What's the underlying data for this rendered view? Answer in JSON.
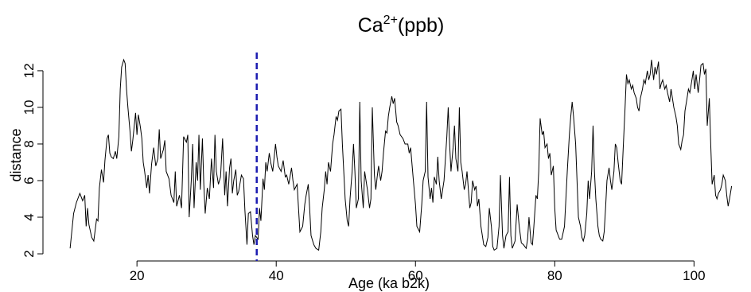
{
  "chart_data": {
    "type": "line",
    "title": [
      "Ca",
      "2+",
      "(ppb)"
    ],
    "x_label": "Age (ka b2k)",
    "y_label": "distance",
    "color": "#000000",
    "x": [
      10.4,
      10.9,
      11.3,
      11.8,
      12.2,
      12.5,
      12.7,
      12.9,
      13.1,
      13.5,
      13.8,
      14.2,
      14.4,
      14.6,
      14.9,
      15.2,
      15.4,
      15.7,
      15.9,
      16.1,
      16.3,
      16.6,
      16.9,
      17.1,
      17.4,
      17.6,
      17.8,
      18.1,
      18.3,
      18.5,
      18.7,
      19.0,
      19.2,
      19.4,
      19.8,
      20.0,
      20.2,
      20.5,
      20.7,
      20.9,
      21.1,
      21.4,
      21.6,
      21.8,
      22.1,
      22.4,
      22.7,
      23.0,
      23.2,
      23.4,
      23.8,
      24.0,
      24.2,
      24.6,
      24.9,
      25.3,
      25.5,
      25.7,
      26.1,
      26.4,
      26.7,
      27.1,
      27.3,
      27.5,
      27.8,
      28.0,
      28.2,
      28.5,
      28.7,
      28.9,
      29.1,
      29.4,
      29.6,
      29.8,
      30.1,
      30.4,
      30.7,
      31.0,
      31.2,
      31.4,
      31.7,
      32.0,
      32.3,
      32.6,
      32.8,
      33.0,
      33.3,
      33.5,
      33.7,
      33.9,
      34.2,
      34.4,
      34.6,
      35.0,
      35.3,
      35.5,
      35.8,
      36.0,
      36.3,
      36.6,
      36.8,
      37.0,
      37.4,
      37.6,
      37.8,
      38.1,
      38.3,
      38.5,
      38.7,
      39.0,
      39.2,
      39.5,
      39.9,
      40.1,
      40.3,
      40.7,
      41.0,
      41.3,
      41.5,
      41.8,
      42.2,
      42.4,
      42.6,
      43.0,
      43.2,
      43.4,
      43.8,
      44.1,
      44.3,
      44.6,
      44.8,
      45.0,
      45.4,
      45.7,
      46.1,
      46.4,
      46.6,
      46.9,
      47.1,
      47.3,
      47.5,
      47.8,
      48.1,
      48.3,
      48.6,
      48.8,
      49.0,
      49.3,
      49.5,
      49.7,
      49.9,
      50.2,
      50.4,
      50.6,
      50.9,
      51.1,
      51.3,
      51.5,
      51.8,
      52.0,
      52.2,
      52.5,
      52.7,
      52.9,
      53.1,
      53.4,
      53.6,
      53.8,
      54.1,
      54.3,
      54.5,
      54.7,
      55.0,
      55.2,
      55.4,
      55.7,
      55.9,
      56.1,
      56.3,
      56.6,
      56.8,
      57.0,
      57.3,
      57.5,
      57.8,
      58.2,
      58.5,
      58.9,
      59.1,
      59.3,
      59.7,
      60.0,
      60.2,
      60.6,
      60.9,
      61.1,
      61.4,
      61.6,
      61.8,
      62.1,
      62.3,
      62.5,
      62.7,
      63.0,
      63.2,
      63.4,
      63.7,
      63.9,
      64.1,
      64.5,
      64.7,
      64.9,
      65.1,
      65.4,
      65.6,
      65.8,
      66.1,
      66.3,
      66.5,
      66.7,
      67.0,
      67.2,
      67.4,
      67.8,
      68.0,
      68.2,
      68.5,
      68.7,
      68.9,
      69.1,
      69.4,
      69.6,
      69.8,
      70.1,
      70.4,
      70.6,
      70.9,
      71.1,
      71.3,
      71.7,
      72.0,
      72.2,
      72.5,
      72.7,
      73.0,
      73.3,
      73.5,
      73.7,
      73.9,
      74.3,
      74.6,
      74.9,
      75.2,
      75.5,
      75.9,
      76.1,
      76.3,
      76.6,
      76.8,
      77.0,
      77.3,
      77.5,
      77.7,
      77.9,
      78.2,
      78.4,
      78.6,
      78.9,
      79.1,
      79.3,
      79.5,
      79.8,
      80.0,
      80.2,
      80.5,
      80.7,
      81.0,
      81.4,
      81.6,
      81.8,
      82.1,
      82.3,
      82.5,
      82.7,
      83.0,
      83.2,
      83.4,
      83.7,
      83.9,
      84.1,
      84.3,
      84.6,
      84.8,
      85.0,
      85.3,
      85.5,
      85.7,
      85.9,
      86.2,
      86.4,
      86.6,
      86.9,
      87.1,
      87.3,
      87.5,
      87.8,
      88.0,
      88.2,
      88.5,
      88.7,
      88.9,
      89.1,
      89.4,
      89.6,
      89.8,
      90.1,
      90.3,
      90.5,
      90.7,
      91.0,
      91.2,
      91.4,
      91.7,
      91.9,
      92.1,
      92.3,
      92.6,
      92.8,
      93.0,
      93.3,
      93.5,
      93.7,
      93.9,
      94.2,
      94.4,
      94.6,
      94.9,
      95.1,
      95.3,
      95.5,
      95.8,
      96.0,
      96.2,
      96.5,
      96.7,
      96.9,
      97.1,
      97.4,
      97.6,
      97.8,
      98.1,
      98.3,
      98.5,
      98.7,
      99.0,
      99.2,
      99.4,
      99.7,
      99.9,
      100.1,
      100.3,
      100.6,
      100.8,
      101.0,
      101.3,
      101.5,
      101.7,
      101.9,
      102.2,
      102.4,
      102.6,
      102.9,
      103.1,
      103.3,
      103.5,
      103.8,
      104.0,
      104.2,
      104.5,
      104.7,
      104.9,
      105.1,
      105.4
    ],
    "values": [
      2.3,
      4.2,
      4.8,
      5.3,
      4.9,
      5.2,
      3.5,
      4.5,
      3.6,
      2.9,
      2.7,
      3.9,
      3.8,
      5.6,
      6.6,
      5.9,
      7.1,
      8.3,
      8.5,
      7.5,
      7.3,
      7.2,
      7.6,
      7.2,
      8.4,
      11.0,
      12.2,
      12.6,
      12.4,
      11.0,
      10.0,
      8.7,
      7.6,
      8.2,
      9.7,
      8.5,
      9.6,
      8.9,
      8.3,
      7.0,
      6.5,
      5.6,
      6.3,
      5.3,
      6.9,
      7.8,
      6.8,
      7.2,
      8.8,
      7.2,
      7.7,
      8.2,
      6.5,
      6.1,
      5.2,
      4.8,
      6.5,
      4.6,
      5.2,
      4.5,
      8.4,
      8.1,
      8.5,
      4.0,
      6.0,
      8.0,
      4.5,
      7.0,
      6.0,
      8.5,
      5.5,
      8.3,
      5.8,
      4.2,
      5.6,
      5.0,
      7.2,
      5.6,
      8.5,
      6.5,
      5.8,
      6.2,
      8.3,
      5.2,
      6.5,
      4.6,
      6.7,
      7.2,
      5.3,
      6.0,
      6.6,
      5.2,
      5.4,
      6.3,
      6.1,
      4.4,
      2.5,
      4.2,
      4.3,
      3.0,
      2.5,
      3.0,
      2.8,
      4.5,
      3.8,
      6.1,
      5.5,
      7.0,
      6.5,
      7.5,
      7.0,
      6.5,
      8.0,
      7.3,
      6.8,
      6.5,
      7.1,
      6.2,
      6.3,
      5.8,
      6.7,
      6.0,
      5.5,
      5.8,
      4.5,
      3.2,
      3.5,
      4.7,
      5.2,
      5.8,
      4.5,
      3.0,
      2.5,
      2.3,
      2.2,
      3.2,
      4.5,
      5.5,
      6.5,
      5.8,
      7.0,
      6.5,
      8.0,
      8.5,
      9.5,
      9.3,
      9.8,
      9.9,
      8.0,
      6.5,
      5.0,
      3.8,
      3.5,
      5.0,
      6.5,
      8.0,
      6.5,
      4.5,
      5.0,
      10.3,
      6.0,
      4.5,
      6.5,
      6.0,
      5.5,
      4.5,
      5.0,
      10.0,
      6.3,
      5.5,
      6.2,
      6.8,
      6.0,
      6.5,
      7.5,
      8.7,
      8.6,
      9.5,
      10.0,
      10.6,
      10.2,
      10.5,
      9.2,
      9.0,
      8.5,
      8.3,
      8.0,
      8.0,
      7.5,
      7.8,
      6.0,
      4.7,
      3.5,
      3.2,
      4.7,
      6.0,
      6.5,
      10.3,
      6.2,
      5.0,
      5.6,
      4.8,
      6.2,
      5.8,
      7.3,
      6.0,
      5.0,
      5.5,
      6.0,
      8.4,
      10.0,
      8.0,
      6.5,
      7.8,
      9.0,
      7.2,
      6.5,
      10.0,
      7.0,
      6.5,
      5.5,
      5.8,
      6.5,
      4.5,
      4.8,
      6.0,
      5.5,
      5.7,
      4.6,
      5.0,
      3.5,
      3.0,
      2.5,
      2.4,
      2.9,
      4.5,
      3.5,
      2.4,
      2.2,
      2.3,
      3.5,
      6.3,
      3.0,
      2.3,
      3.0,
      3.2,
      6.2,
      3.0,
      2.3,
      2.7,
      4.7,
      3.5,
      2.6,
      2.5,
      2.3,
      2.8,
      4.0,
      2.6,
      2.5,
      3.5,
      5.2,
      5.0,
      6.5,
      9.4,
      8.5,
      8.7,
      7.8,
      8.0,
      7.2,
      7.5,
      6.3,
      6.8,
      4.5,
      3.3,
      3.0,
      2.8,
      2.8,
      3.5,
      5.0,
      6.5,
      8.5,
      9.5,
      10.3,
      9.5,
      8.0,
      6.0,
      4.0,
      3.5,
      2.9,
      2.7,
      3.0,
      4.2,
      6.0,
      5.0,
      6.5,
      9.0,
      6.5,
      5.0,
      3.5,
      3.0,
      2.8,
      2.7,
      3.2,
      4.5,
      6.0,
      6.7,
      6.0,
      5.5,
      6.5,
      8.0,
      7.8,
      7.0,
      6.0,
      5.8,
      7.5,
      10.0,
      11.8,
      11.3,
      11.5,
      11.0,
      11.2,
      10.8,
      10.5,
      10.0,
      9.8,
      10.5,
      11.0,
      11.5,
      11.3,
      12.0,
      11.5,
      11.8,
      12.6,
      11.5,
      12.2,
      11.8,
      12.5,
      11.0,
      11.3,
      11.5,
      11.0,
      11.2,
      10.8,
      10.3,
      11.0,
      10.5,
      10.0,
      9.5,
      9.0,
      8.0,
      7.7,
      8.2,
      8.5,
      9.8,
      10.5,
      11.0,
      10.8,
      11.5,
      12.0,
      11.0,
      11.8,
      10.8,
      11.5,
      12.3,
      12.4,
      11.8,
      12.1,
      9.0,
      10.5,
      8.0,
      5.8,
      6.3,
      5.2,
      5.0,
      5.3,
      5.5,
      5.8,
      6.3,
      6.0,
      5.2,
      4.6,
      5.0,
      5.7
    ],
    "xlim": [
      6.5,
      105.9
    ],
    "ylim": [
      1.61,
      13.17
    ],
    "xticks": [
      20,
      40,
      60,
      80,
      100
    ],
    "yticks": [
      2,
      4,
      6,
      8,
      10,
      12
    ],
    "vline": {
      "x": 37.2,
      "color": "#1c1cb0"
    }
  }
}
